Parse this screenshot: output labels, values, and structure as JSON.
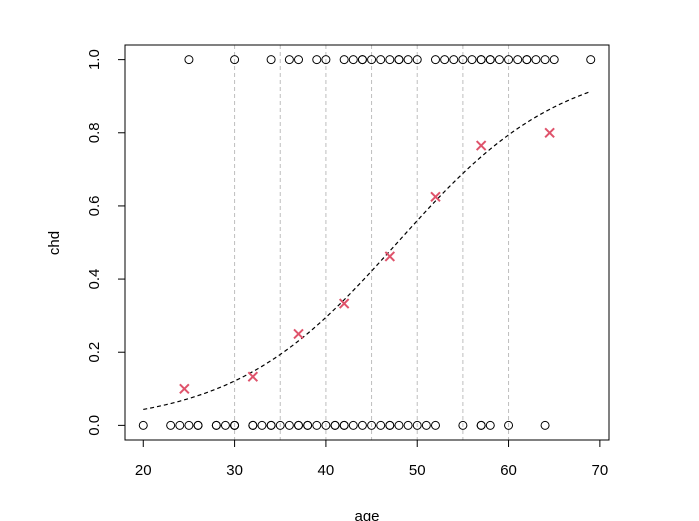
{
  "chart_data": {
    "type": "scatter",
    "title": "",
    "xlabel": "age",
    "ylabel": "chd",
    "xlim": [
      18,
      71
    ],
    "ylim": [
      -0.04,
      1.04
    ],
    "x_ticks": [
      20,
      30,
      40,
      50,
      60,
      70
    ],
    "y_ticks": [
      0.0,
      0.2,
      0.4,
      0.6,
      0.8,
      1.0
    ],
    "x_tick_labels": [
      "20",
      "30",
      "40",
      "50",
      "60",
      "70"
    ],
    "y_tick_labels": [
      "0.0",
      "0.2",
      "0.4",
      "0.6",
      "0.8",
      "1.0"
    ],
    "vertical_reference_lines": [
      30,
      35,
      40,
      45,
      50,
      55,
      60
    ],
    "observations": {
      "chd_1_ages": [
        25,
        30,
        34,
        36,
        37,
        39,
        40,
        42,
        43,
        44,
        44,
        45,
        46,
        47,
        48,
        48,
        49,
        50,
        52,
        53,
        54,
        55,
        56,
        57,
        57,
        58,
        58,
        59,
        60,
        61,
        62,
        62,
        63,
        64,
        65,
        69
      ],
      "chd_0_ages": [
        20,
        23,
        24,
        25,
        26,
        26,
        28,
        28,
        29,
        30,
        30,
        30,
        32,
        32,
        33,
        34,
        34,
        35,
        36,
        37,
        37,
        38,
        38,
        39,
        40,
        41,
        41,
        42,
        42,
        43,
        44,
        45,
        46,
        47,
        47,
        48,
        49,
        50,
        51,
        52,
        55,
        57,
        57,
        58,
        60,
        64
      ]
    },
    "group_proportions": {
      "x": [
        24.5,
        32,
        37,
        42,
        47,
        52,
        57,
        64.5
      ],
      "y": [
        0.1,
        0.133,
        0.25,
        0.333,
        0.462,
        0.625,
        0.765,
        0.8
      ]
    },
    "fitted_curve": {
      "style": "dashed",
      "intercept": -5.31,
      "slope": 0.111
    },
    "colors": {
      "group_marker": "#df536b",
      "points": "#000000",
      "reference_lines": "#bebebe",
      "curve": "#000000"
    },
    "grid": false,
    "legend": "none"
  }
}
